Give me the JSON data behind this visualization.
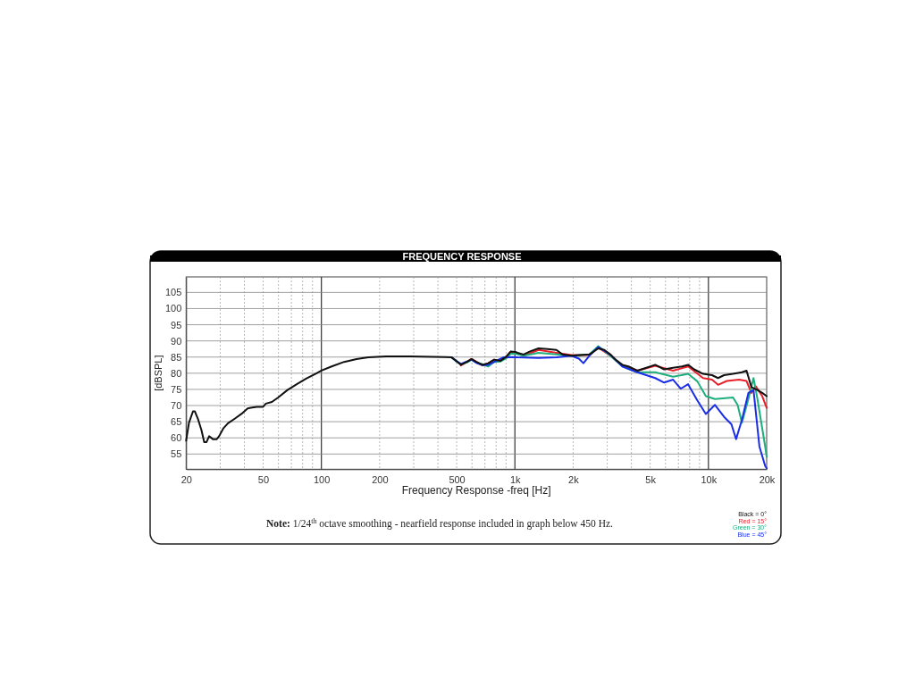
{
  "chart_data": {
    "type": "line",
    "title": "FREQUENCY RESPONSE",
    "xlabel": "Frequency Response -freq [Hz]",
    "ylabel": "[dBSPL]",
    "annotations": [
      "Note: 1/24$^{th}$ octave smoothing - nearfield response included in graph below 450 Hz."
    ],
    "log": "x",
    "grid": true,
    "legend": "bottom right",
    "line_style": "solid",
    "marker": "none",
    "xlim": [
      20,
      20000
    ],
    "ylim": [
      50.3,
      109.8
    ],
    "xticks": [
      20,
      {
        "value": 30,
        "label": null
      },
      {
        "value": 40,
        "label": null
      },
      50,
      {
        "value": 60,
        "label": null
      },
      {
        "value": 70,
        "label": null
      },
      {
        "value": 80,
        "label": null
      },
      {
        "value": 90,
        "label": null
      },
      100,
      200,
      {
        "value": 300,
        "label": null
      },
      {
        "value": 400,
        "label": null
      },
      500,
      {
        "value": 600,
        "label": null
      },
      {
        "value": 700,
        "label": null
      },
      {
        "value": 800,
        "label": null
      },
      {
        "value": 900,
        "label": null
      },
      {
        "value": 1000,
        "label": "1k"
      },
      {
        "value": 2000,
        "label": "2k"
      },
      {
        "value": 3000,
        "label": null
      },
      {
        "value": 4000,
        "label": null
      },
      {
        "value": 5000,
        "label": "5k"
      },
      {
        "value": 6000,
        "label": null
      },
      {
        "value": 7000,
        "label": null
      },
      {
        "value": 8000,
        "label": null
      },
      {
        "value": 9000,
        "label": null
      },
      {
        "value": 10000,
        "label": "10k"
      },
      {
        "value": 20000,
        "label": "20k"
      }
    ],
    "yticks": [
      55,
      60,
      65,
      70,
      75,
      80,
      85,
      90,
      95,
      100,
      105
    ],
    "series": [
      {
        "name": "Red = 15°",
        "color": "#e8202a",
        "x": [
          526,
          565,
          597,
          632,
          680,
          729,
          782,
          840,
          901,
          951,
          1109,
          1325,
          1640,
          1960,
          2425,
          2698,
          3112,
          3593,
          4293,
          5311,
          6570,
          7851,
          9383,
          10440,
          11210,
          12450,
          14400,
          15740,
          16680,
          17600,
          18980,
          20000
        ],
        "values": [
          82.4,
          83.5,
          84.4,
          83.5,
          82.4,
          83.1,
          84.2,
          83.8,
          85.1,
          86.7,
          85.4,
          87.2,
          86.3,
          85.6,
          85.6,
          87.9,
          85.4,
          82.3,
          80.8,
          82.3,
          80.8,
          82.1,
          78.5,
          78,
          76.4,
          77.6,
          78,
          77.6,
          73.9,
          75.9,
          72.9,
          69.3
        ]
      },
      {
        "name": "Green = 30°",
        "color": "#1fae7e",
        "x": [
          471,
          498,
          526,
          565,
          597,
          632,
          680,
          729,
          782,
          840,
          901,
          951,
          1005,
          1109,
          1325,
          1640,
          1960,
          2425,
          2698,
          3112,
          3593,
          4293,
          5311,
          6570,
          7851,
          8763,
          9700,
          10810,
          13400,
          14150,
          14900,
          16090,
          17100,
          17920,
          19650,
          20000
        ],
        "values": [
          84.9,
          83.6,
          82.8,
          83.3,
          84.2,
          83.3,
          82.8,
          82.1,
          83.5,
          83.6,
          84.6,
          86,
          86,
          85.4,
          86.3,
          85.8,
          85.4,
          85.8,
          88.4,
          85.4,
          82.1,
          80.3,
          80.3,
          78.9,
          79.8,
          77.5,
          72.9,
          72,
          72.5,
          70.2,
          64.7,
          72,
          78.5,
          72,
          57.3,
          54.1
        ]
      },
      {
        "name": "Blue = 45°",
        "color": "#1a2ee8",
        "x": [
          471,
          498,
          526,
          565,
          597,
          632,
          680,
          729,
          782,
          870,
          970,
          1033,
          1325,
          1640,
          1960,
          2140,
          2260,
          2425,
          2698,
          3112,
          3593,
          4293,
          4775,
          5311,
          5907,
          6570,
          7190,
          7851,
          8763,
          9700,
          10810,
          12050,
          13150,
          13900,
          14900,
          16090,
          17100,
          18350,
          19650,
          20000
        ],
        "values": [
          84.9,
          83.8,
          82.9,
          83.6,
          84.2,
          83.2,
          82.5,
          82.6,
          83.5,
          84.9,
          85,
          84.9,
          84.7,
          84.9,
          85.4,
          84.5,
          83.1,
          85.4,
          88.1,
          85.8,
          82.1,
          80.3,
          79.4,
          78.5,
          77.1,
          78,
          75.2,
          76.6,
          71.6,
          67.4,
          70.2,
          66.5,
          64.2,
          59.6,
          65.6,
          73.9,
          74.8,
          57.3,
          51.3,
          50.6
        ]
      },
      {
        "name": "Black = 0°",
        "color": "#111111",
        "x": [
          20,
          20.7,
          21.7,
          22.2,
          23.1,
          24,
          24.8,
          25.5,
          26.3,
          27.5,
          28.8,
          29.6,
          31.2,
          32.9,
          35.8,
          38.6,
          41.6,
          43.1,
          46.4,
          50,
          51.6,
          55.5,
          59.8,
          66.8,
          74.6,
          83.4,
          93.1,
          100,
          113,
          131,
          152,
          175,
          216,
          287,
          437,
          471,
          498,
          526,
          565,
          597,
          632,
          680,
          729,
          782,
          840,
          901,
          951,
          1005,
          1033,
          1109,
          1190,
          1325,
          1474,
          1640,
          1762,
          1960,
          2180,
          2425,
          2698,
          2899,
          3112,
          3344,
          3593,
          3860,
          4293,
          4775,
          5311,
          5907,
          6570,
          7307,
          7851,
          8435,
          9383,
          10440,
          11210,
          12050,
          13400,
          14900,
          15740,
          16680,
          17920,
          18980,
          20000
        ],
        "values": [
          59.1,
          64.7,
          68.2,
          68.2,
          65.6,
          62.4,
          58.7,
          58.7,
          60.5,
          59.6,
          59.6,
          60.5,
          63,
          64.5,
          66,
          67.4,
          69.1,
          69.3,
          69.6,
          69.6,
          70.6,
          71.1,
          72.5,
          74.8,
          76.6,
          78.3,
          79.8,
          80.8,
          82.1,
          83.5,
          84.4,
          84.9,
          85.2,
          85.2,
          85,
          84.9,
          83.8,
          82.6,
          83.5,
          84.4,
          83.5,
          82.6,
          83.1,
          84.2,
          83.8,
          85.1,
          86.7,
          86.6,
          86.3,
          85.8,
          86.7,
          87.7,
          87.5,
          87.2,
          85.8,
          85.4,
          85.6,
          85.8,
          87.7,
          87.2,
          85.8,
          84,
          82.6,
          82.1,
          80.8,
          81.7,
          82.6,
          81.2,
          81.7,
          82.1,
          82.6,
          81.2,
          79.8,
          79.4,
          78.5,
          79.4,
          79.8,
          80.3,
          80.8,
          75.7,
          74.8,
          73.9,
          72.9
        ]
      }
    ]
  }
}
